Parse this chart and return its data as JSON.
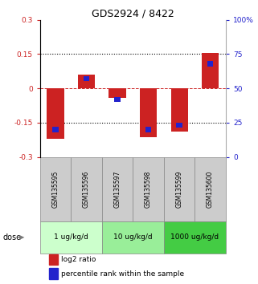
{
  "title": "GDS2924 / 8422",
  "samples": [
    "GSM135595",
    "GSM135596",
    "GSM135597",
    "GSM135598",
    "GSM135599",
    "GSM135600"
  ],
  "doses": [
    {
      "label": "1 ug/kg/d",
      "color": "#ccffcc"
    },
    {
      "label": "10 ug/kg/d",
      "color": "#99ee99"
    },
    {
      "label": "1000 ug/kg/d",
      "color": "#44cc44"
    }
  ],
  "log2_ratio": [
    -0.22,
    0.06,
    -0.04,
    -0.215,
    -0.19,
    0.155
  ],
  "percentile_rank": [
    20,
    57,
    42,
    20,
    23,
    68
  ],
  "ylim_left": [
    -0.3,
    0.3
  ],
  "ylim_right": [
    0,
    100
  ],
  "yticks_left": [
    -0.3,
    -0.15,
    0,
    0.15,
    0.3
  ],
  "yticks_right": [
    0,
    25,
    50,
    75,
    100
  ],
  "ytick_labels_left": [
    "-0.3",
    "-0.15",
    "0",
    "0.15",
    "0.3"
  ],
  "ytick_labels_right": [
    "0",
    "25",
    "50",
    "75",
    "100%"
  ],
  "red_color": "#cc2222",
  "blue_color": "#2222cc",
  "sample_bg_color": "#cccccc",
  "dose_arrow_text": "dose",
  "legend_red": "log2 ratio",
  "legend_blue": "percentile rank within the sample"
}
